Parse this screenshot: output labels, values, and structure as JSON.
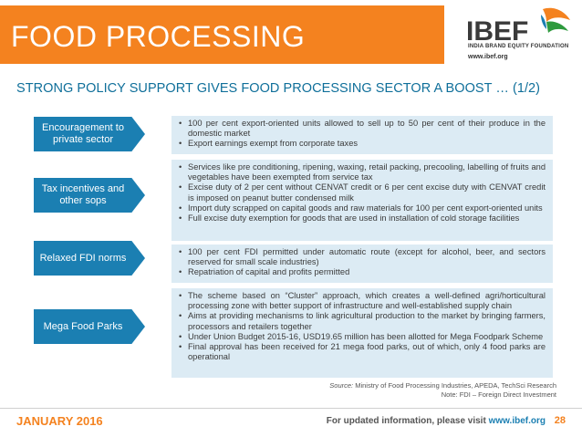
{
  "header": {
    "title": "FOOD PROCESSING",
    "logo_text": "IBEF",
    "logo_tagline": "INDIA BRAND EQUITY FOUNDATION",
    "logo_url": "www.ibef.org"
  },
  "subtitle": "STRONG POLICY SUPPORT GIVES FOOD PROCESSING SECTOR A BOOST … (1/2)",
  "rows": [
    {
      "label": "Encouragement to private sector",
      "bullets": [
        "100 per cent export-oriented units allowed to sell up to 50 per cent of their produce in the domestic market",
        "Export earnings exempt from corporate taxes"
      ]
    },
    {
      "label": "Tax incentives and other sops",
      "bullets": [
        "Services like pre conditioning, ripening, waxing, retail packing, precooling, labelling of fruits and vegetables have been exempted from service tax",
        "Excise duty of 2 per cent without CENVAT credit or 6 per cent excise duty with CENVAT credit is imposed on peanut butter condensed milk",
        "Import duty scrapped on capital goods and raw materials for 100 per cent export-oriented units",
        "Full excise duty exemption for goods that are used in installation of cold storage facilities"
      ]
    },
    {
      "label": "Relaxed FDI norms",
      "bullets": [
        "100 per cent FDI permitted under automatic route (except for alcohol, beer, and sectors reserved for small scale industries)",
        "Repatriation of capital and profits permitted"
      ]
    },
    {
      "label": "Mega Food Parks",
      "bullets": [
        "The scheme based on “Cluster” approach, which creates a well-defined agri/horticultural processing zone with better support of infrastructure and well-established supply chain",
        "Aims at providing mechanisms to link agricultural production to the market by bringing farmers, processors and retailers together",
        "Under Union Budget 2015-16, USD19.65 million has been allotted for Mega Foodpark Scheme",
        "Final approval has been received for 21 mega food parks, out of which, only 4 food parks are operational"
      ]
    }
  ],
  "source": {
    "label": "Source:",
    "text": " Ministry of Food Processing Industries, APEDA, TechSci Research",
    "note": "Note: FDI – Foreign Direct Investment"
  },
  "footer": {
    "date": "JANUARY 2016",
    "info_prefix": "For updated information, please visit ",
    "info_link": "www.ibef.org",
    "page": "28"
  },
  "colors": {
    "orange": "#f4821f",
    "blue": "#1b7fb2",
    "light_blue": "#dcebf4",
    "subtitle_blue": "#0f6f9a"
  }
}
